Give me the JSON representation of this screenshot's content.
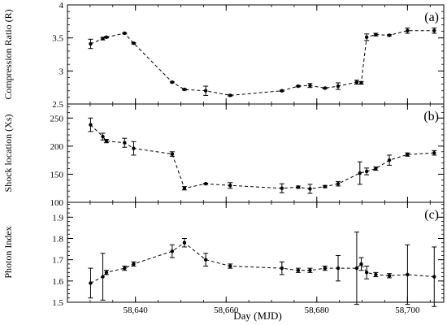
{
  "chart_data": [
    {
      "type": "line",
      "panel_label": "(a)",
      "ylabel": "Compression Ratio (R)",
      "ylim": [
        2.5,
        4
      ],
      "yticks": [
        2.5,
        3,
        3.5,
        4
      ],
      "yminor": 0.1,
      "points": [
        {
          "x": 58630.1,
          "y": 3.41,
          "err": 0.07
        },
        {
          "x": 58632.8,
          "y": 3.49,
          "err": 0.02
        },
        {
          "x": 58633.6,
          "y": 3.51,
          "err": 0.01
        },
        {
          "x": 58637.6,
          "y": 3.57,
          "err": 0.01
        },
        {
          "x": 58639.6,
          "y": 3.42,
          "err": 0.01
        },
        {
          "x": 58648.1,
          "y": 2.83,
          "err": 0.01
        },
        {
          "x": 58650.8,
          "y": 2.72,
          "err": 0.01
        },
        {
          "x": 58655.5,
          "y": 2.7,
          "err": 0.07
        },
        {
          "x": 58660.9,
          "y": 2.63,
          "err": 0.01
        },
        {
          "x": 58672.3,
          "y": 2.7,
          "err": 0.01
        },
        {
          "x": 58675.9,
          "y": 2.77,
          "err": 0.01
        },
        {
          "x": 58678.5,
          "y": 2.78,
          "err": 0.03
        },
        {
          "x": 58681.8,
          "y": 2.74,
          "err": 0.01
        },
        {
          "x": 58684.7,
          "y": 2.77,
          "err": 0.05
        },
        {
          "x": 58688.8,
          "y": 2.83,
          "err": 0.03
        },
        {
          "x": 58689.8,
          "y": 2.82,
          "err": 0.02
        },
        {
          "x": 58691.0,
          "y": 3.51,
          "err": 0.05
        },
        {
          "x": 58693.0,
          "y": 3.55,
          "err": 0.02
        },
        {
          "x": 58696.0,
          "y": 3.54,
          "err": 0.01
        },
        {
          "x": 58700.0,
          "y": 3.61,
          "err": 0.04
        },
        {
          "x": 58705.9,
          "y": 3.61,
          "err": 0.04
        }
      ]
    },
    {
      "type": "line",
      "panel_label": "(b)",
      "ylabel": "Shock location (Xs)",
      "ylim": [
        100,
        275
      ],
      "yticks": [
        100,
        150,
        200,
        250
      ],
      "yminor": 10,
      "points": [
        {
          "x": 58630.1,
          "y": 238,
          "err": 12
        },
        {
          "x": 58632.8,
          "y": 217,
          "err": 6
        },
        {
          "x": 58633.6,
          "y": 209,
          "err": 3
        },
        {
          "x": 58637.6,
          "y": 206,
          "err": 8
        },
        {
          "x": 58639.6,
          "y": 196,
          "err": 12
        },
        {
          "x": 58648.1,
          "y": 186,
          "err": 4
        },
        {
          "x": 58650.8,
          "y": 125,
          "err": 3
        },
        {
          "x": 58655.5,
          "y": 133,
          "err": 1
        },
        {
          "x": 58660.9,
          "y": 130,
          "err": 5
        },
        {
          "x": 58672.3,
          "y": 125,
          "err": 8
        },
        {
          "x": 58675.9,
          "y": 127,
          "err": 2
        },
        {
          "x": 58678.5,
          "y": 124,
          "err": 8
        },
        {
          "x": 58681.8,
          "y": 128,
          "err": 2
        },
        {
          "x": 58684.7,
          "y": 133,
          "err": 4
        },
        {
          "x": 58689.5,
          "y": 152,
          "err": 20
        },
        {
          "x": 58691.0,
          "y": 155,
          "err": 6
        },
        {
          "x": 58693.0,
          "y": 160,
          "err": 3
        },
        {
          "x": 58696.0,
          "y": 175,
          "err": 9
        },
        {
          "x": 58700.0,
          "y": 185,
          "err": 3
        },
        {
          "x": 58705.9,
          "y": 188,
          "err": 4
        }
      ]
    },
    {
      "type": "line",
      "panel_label": "(c)",
      "ylabel": "Photon Index",
      "ylim": [
        1.5,
        1.97
      ],
      "yticks": [
        1.5,
        1.6,
        1.7,
        1.8,
        1.9
      ],
      "yminor": 0.02,
      "points": [
        {
          "x": 58630.1,
          "y": 1.59,
          "err": 0.07
        },
        {
          "x": 58632.8,
          "y": 1.62,
          "err": 0.11
        },
        {
          "x": 58633.6,
          "y": 1.64,
          "err": 0.01
        },
        {
          "x": 58637.6,
          "y": 1.66,
          "err": 0.01
        },
        {
          "x": 58639.6,
          "y": 1.68,
          "err": 0.01
        },
        {
          "x": 58648.1,
          "y": 1.74,
          "err": 0.03
        },
        {
          "x": 58650.8,
          "y": 1.78,
          "err": 0.02
        },
        {
          "x": 58655.5,
          "y": 1.7,
          "err": 0.03
        },
        {
          "x": 58660.9,
          "y": 1.67,
          "err": 0.01
        },
        {
          "x": 58672.3,
          "y": 1.66,
          "err": 0.03
        },
        {
          "x": 58675.9,
          "y": 1.65,
          "err": 0.01
        },
        {
          "x": 58678.5,
          "y": 1.65,
          "err": 0.01
        },
        {
          "x": 58681.8,
          "y": 1.66,
          "err": 0.01
        },
        {
          "x": 58684.7,
          "y": 1.66,
          "err": 0.06
        },
        {
          "x": 58688.8,
          "y": 1.66,
          "err": 0.17
        },
        {
          "x": 58689.8,
          "y": 1.68,
          "err": 0.03
        },
        {
          "x": 58691.0,
          "y": 1.64,
          "err": 0.03
        },
        {
          "x": 58693.0,
          "y": 1.63,
          "err": 0.01
        },
        {
          "x": 58696.0,
          "y": 1.625,
          "err": 0.01
        },
        {
          "x": 58700.0,
          "y": 1.63,
          "err": 0.14
        },
        {
          "x": 58705.9,
          "y": 1.62,
          "err": 0.14
        }
      ]
    }
  ],
  "x_axis": {
    "xlabel": "Day (MJD)",
    "xlim": [
      58625,
      58708
    ],
    "xticks": [
      58640,
      58660,
      58680,
      58700
    ],
    "xtick_labels": [
      "58,640",
      "58,660",
      "58,680",
      "58,700"
    ],
    "xminor": 5
  },
  "style": {
    "line_color": "#000000",
    "marker_color": "#000000",
    "line_style": "dashed",
    "grid": false,
    "legend": "none"
  }
}
